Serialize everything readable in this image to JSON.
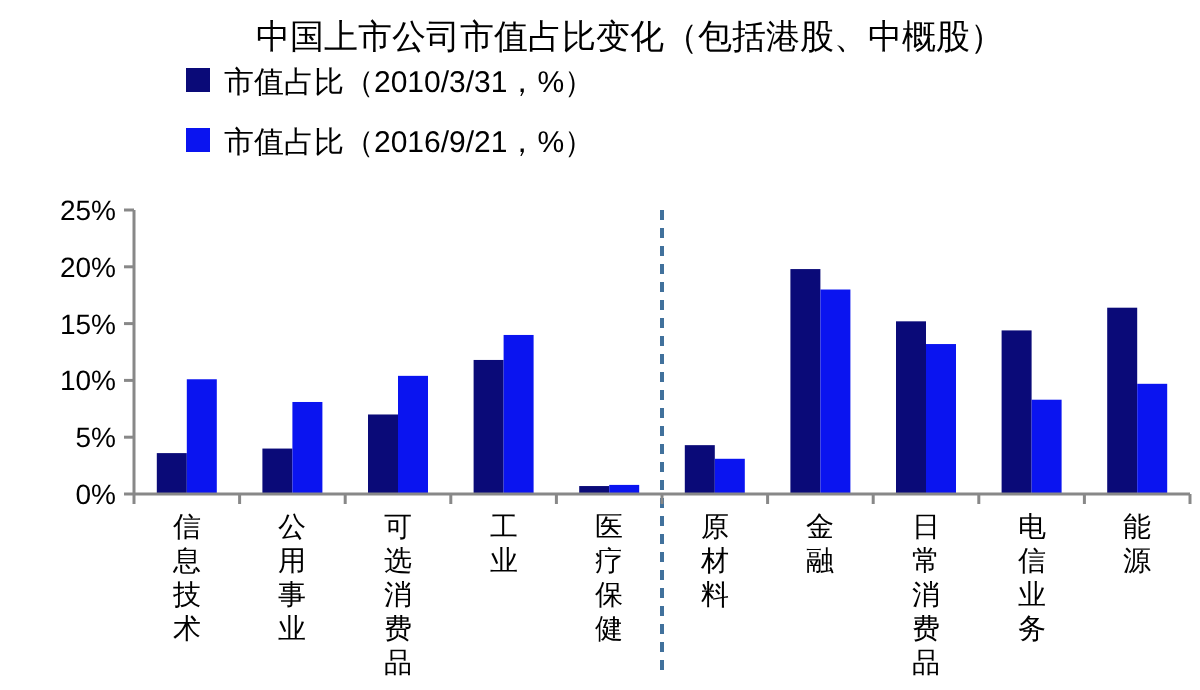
{
  "chart_data": {
    "type": "bar",
    "title": "中国上市公司市值占比变化（包括港股、中概股）",
    "categories": [
      "信息技术",
      "公用事业",
      "可选消费品",
      "工业",
      "医疗保健",
      "原材料",
      "金融",
      "日常消费品",
      "电信业务",
      "能源"
    ],
    "series": [
      {
        "name": "市值占比（2010/3/31，%）",
        "color": "#0a0a78",
        "values": [
          3.6,
          4.0,
          7.0,
          11.8,
          0.7,
          4.3,
          19.8,
          15.2,
          14.4,
          16.4
        ]
      },
      {
        "name": "市值占比（2016/9/21，%）",
        "color": "#0a14f0",
        "values": [
          10.1,
          8.1,
          10.4,
          14.0,
          0.8,
          3.1,
          18.0,
          13.2,
          8.3,
          9.7
        ]
      }
    ],
    "ylim": [
      0,
      25
    ],
    "yticks": [
      {
        "value": 0,
        "label": "0%"
      },
      {
        "value": 5,
        "label": "5%"
      },
      {
        "value": 10,
        "label": "10%"
      },
      {
        "value": 15,
        "label": "15%"
      },
      {
        "value": 20,
        "label": "20%"
      },
      {
        "value": 25,
        "label": "25%"
      }
    ],
    "legend": "top left",
    "grid": false
  }
}
